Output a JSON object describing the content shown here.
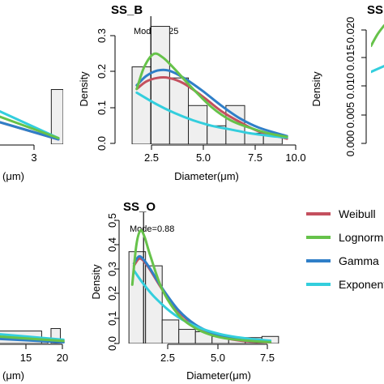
{
  "legend": {
    "items": [
      {
        "name": "Weibull",
        "color": "#c4505e"
      },
      {
        "name": "Lognorm",
        "color": "#66c24a"
      },
      {
        "name": "Gamma",
        "color": "#2f7fc8"
      },
      {
        "name": "Exponent",
        "color": "#33cedd"
      }
    ]
  },
  "chart_data": [
    {
      "type": "bar",
      "title": "",
      "xlabel": "(μm)",
      "ylabel": "",
      "xticks": [
        "3"
      ],
      "note": "partial panel cropped at left edge",
      "xlim": [
        0.5,
        3.5
      ],
      "ylim": [
        0,
        0.1
      ],
      "bins": [
        {
          "x0": 3.0,
          "x1": 3.5,
          "y": 0.045
        }
      ],
      "curves": {
        "Weibull": [
          [
            0.5,
            0.02
          ],
          [
            3.3,
            0.004
          ]
        ],
        "Lognorm": [
          [
            0.5,
            0.025
          ],
          [
            3.3,
            0.005
          ]
        ],
        "Gamma": [
          [
            0.5,
            0.02
          ],
          [
            3.3,
            0.004
          ]
        ],
        "Exponent": [
          [
            0.5,
            0.03
          ],
          [
            3.3,
            0.005
          ]
        ]
      }
    },
    {
      "type": "bar",
      "title": "SS_B",
      "xlabel": "Diameter(μm)",
      "ylabel": "Density",
      "xticks": [
        "2.5",
        "5.0",
        "7.5",
        "10.0"
      ],
      "yticks": [
        "0.0",
        "0.1",
        "0.2",
        "0.3"
      ],
      "xlim": [
        0.6,
        10.4
      ],
      "ylim": [
        0,
        0.33
      ],
      "mode_label": "Mode=2.25",
      "mode": 2.25,
      "bins": [
        {
          "x0": 1.25,
          "x1": 2.25,
          "y": 0.21
        },
        {
          "x0": 2.25,
          "x1": 3.25,
          "y": 0.32
        },
        {
          "x0": 3.25,
          "x1": 4.25,
          "y": 0.18
        },
        {
          "x0": 4.25,
          "x1": 5.25,
          "y": 0.105
        },
        {
          "x0": 5.25,
          "x1": 6.25,
          "y": 0.05
        },
        {
          "x0": 6.25,
          "x1": 7.25,
          "y": 0.105
        },
        {
          "x0": 7.25,
          "x1": 8.25,
          "y": 0.03
        },
        {
          "x0": 8.25,
          "x1": 9.25,
          "y": 0.025
        }
      ],
      "curves": {
        "Weibull": [
          [
            1.5,
            0.15
          ],
          [
            2.0,
            0.17
          ],
          [
            2.6,
            0.18
          ],
          [
            3.2,
            0.18
          ],
          [
            4.0,
            0.165
          ],
          [
            5.0,
            0.13
          ],
          [
            6.0,
            0.09
          ],
          [
            7.0,
            0.06
          ],
          [
            8.0,
            0.035
          ],
          [
            9.5,
            0.015
          ]
        ],
        "Lognorm": [
          [
            1.5,
            0.15
          ],
          [
            1.9,
            0.21
          ],
          [
            2.4,
            0.245
          ],
          [
            2.9,
            0.235
          ],
          [
            3.5,
            0.205
          ],
          [
            4.5,
            0.15
          ],
          [
            5.5,
            0.1
          ],
          [
            6.5,
            0.065
          ],
          [
            7.5,
            0.045
          ],
          [
            8.5,
            0.03
          ],
          [
            9.5,
            0.02
          ]
        ],
        "Gamma": [
          [
            1.5,
            0.16
          ],
          [
            2.0,
            0.185
          ],
          [
            2.6,
            0.2
          ],
          [
            3.2,
            0.2
          ],
          [
            4.0,
            0.18
          ],
          [
            5.0,
            0.145
          ],
          [
            6.0,
            0.105
          ],
          [
            7.0,
            0.07
          ],
          [
            8.0,
            0.045
          ],
          [
            9.5,
            0.022
          ]
        ],
        "Exponent": [
          [
            1.5,
            0.14
          ],
          [
            2.5,
            0.11
          ],
          [
            3.5,
            0.085
          ],
          [
            4.5,
            0.065
          ],
          [
            5.5,
            0.05
          ],
          [
            6.5,
            0.04
          ],
          [
            7.5,
            0.03
          ],
          [
            8.5,
            0.023
          ],
          [
            9.5,
            0.018
          ]
        ]
      }
    },
    {
      "type": "bar",
      "title": "SS",
      "xlabel": "",
      "ylabel": "Density",
      "yticks": [
        "0.000",
        "0.005",
        "0.010",
        "0.015",
        "0.020"
      ],
      "ylim": [
        0,
        0.021
      ],
      "note": "partial panel cropped at right edge",
      "curves": {
        "Lognorm": [
          [
            0,
            0.017
          ],
          [
            1,
            0.019
          ],
          [
            2,
            0.0205
          ]
        ],
        "Exponent": [
          [
            0,
            0.0125
          ],
          [
            2,
            0.0135
          ]
        ]
      }
    },
    {
      "type": "bar",
      "title": "",
      "xlabel": "(μm)",
      "ylabel": "",
      "xticks": [
        "15",
        "20"
      ],
      "note": "partial panel cropped at left edge",
      "xlim": [
        8.5,
        21
      ],
      "ylim": [
        0,
        0.1
      ],
      "bins": [
        {
          "x0": 8.5,
          "x1": 16.5,
          "y": 0.01
        },
        {
          "x0": 16.5,
          "x1": 17.5,
          "y": 0.004
        },
        {
          "x0": 18.0,
          "x1": 19.5,
          "y": 0.012
        }
      ],
      "curves": {
        "Weibull": [
          [
            8.5,
            0.005
          ],
          [
            20,
            0.001
          ]
        ],
        "Lognorm": [
          [
            8.5,
            0.006
          ],
          [
            20,
            0.002
          ]
        ],
        "Gamma": [
          [
            8.5,
            0.004
          ],
          [
            20,
            0.001
          ]
        ],
        "Exponent": [
          [
            8.5,
            0.008
          ],
          [
            20,
            0.003
          ]
        ]
      }
    },
    {
      "type": "bar",
      "title": "SS_O",
      "xlabel": "Diameter(μm)",
      "ylabel": "Density",
      "xticks": [
        "2.5",
        "5.0",
        "7.5"
      ],
      "yticks": [
        "0.0",
        "0.1",
        "0.2",
        "0.3",
        "0.4",
        "0.5"
      ],
      "xlim": [
        -0.3,
        9.3
      ],
      "ylim": [
        0,
        0.53
      ],
      "mode_label": "Mode=0.88",
      "mode": 0.88,
      "bins": [
        {
          "x0": 0.0,
          "x1": 1.0,
          "y": 0.39
        },
        {
          "x0": 1.0,
          "x1": 2.0,
          "y": 0.33
        },
        {
          "x0": 2.0,
          "x1": 3.0,
          "y": 0.1
        },
        {
          "x0": 3.0,
          "x1": 4.0,
          "y": 0.06
        },
        {
          "x0": 4.0,
          "x1": 5.0,
          "y": 0.05
        },
        {
          "x0": 5.0,
          "x1": 6.0,
          "y": 0.03
        },
        {
          "x0": 6.0,
          "x1": 7.0,
          "y": 0.025
        },
        {
          "x0": 7.0,
          "x1": 8.0,
          "y": 0.025
        },
        {
          "x0": 8.0,
          "x1": 9.0,
          "y": 0.03
        }
      ],
      "curves": {
        "Weibull": [
          [
            0.3,
            0.33
          ],
          [
            0.6,
            0.36
          ],
          [
            0.9,
            0.35
          ],
          [
            1.3,
            0.31
          ],
          [
            2.0,
            0.23
          ],
          [
            3.0,
            0.135
          ],
          [
            4.0,
            0.075
          ],
          [
            5.0,
            0.04
          ],
          [
            6.0,
            0.02
          ],
          [
            7.0,
            0.01
          ],
          [
            8.5,
            0.004
          ]
        ],
        "Lognorm": [
          [
            0.2,
            0.25
          ],
          [
            0.45,
            0.42
          ],
          [
            0.7,
            0.48
          ],
          [
            0.95,
            0.45
          ],
          [
            1.3,
            0.37
          ],
          [
            2.0,
            0.23
          ],
          [
            3.0,
            0.12
          ],
          [
            4.0,
            0.065
          ],
          [
            5.0,
            0.035
          ],
          [
            6.0,
            0.02
          ],
          [
            7.5,
            0.01
          ],
          [
            8.5,
            0.006
          ]
        ],
        "Gamma": [
          [
            0.3,
            0.34
          ],
          [
            0.6,
            0.37
          ],
          [
            0.9,
            0.355
          ],
          [
            1.3,
            0.315
          ],
          [
            2.0,
            0.235
          ],
          [
            3.0,
            0.14
          ],
          [
            4.0,
            0.08
          ],
          [
            5.0,
            0.045
          ],
          [
            6.0,
            0.025
          ],
          [
            7.0,
            0.013
          ],
          [
            8.5,
            0.006
          ]
        ],
        "Exponent": [
          [
            0.3,
            0.31
          ],
          [
            0.8,
            0.26
          ],
          [
            1.5,
            0.2
          ],
          [
            2.5,
            0.135
          ],
          [
            3.5,
            0.09
          ],
          [
            4.5,
            0.06
          ],
          [
            5.5,
            0.04
          ],
          [
            6.5,
            0.027
          ],
          [
            7.5,
            0.018
          ],
          [
            8.5,
            0.012
          ]
        ]
      }
    }
  ]
}
